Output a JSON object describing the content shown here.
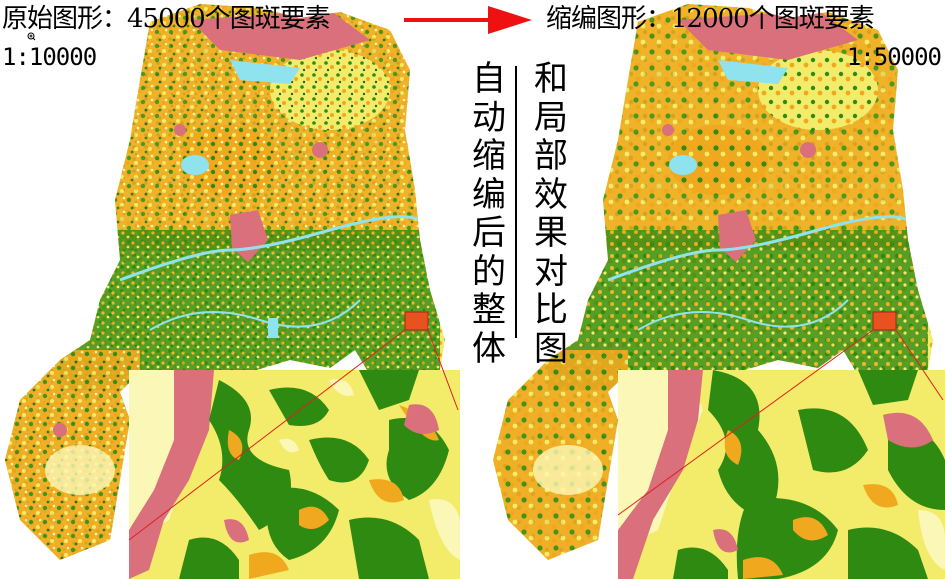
{
  "left": {
    "title": "原始图形：45000个图斑要素",
    "scale": "1:10000"
  },
  "right": {
    "title": "缩编图形：12000个图斑要素",
    "scale": "1:50000"
  },
  "caption": {
    "column_one": "自动缩编后的整体",
    "column_two": "和局部效果对比图"
  },
  "colors": {
    "arrow": "#ee1111",
    "forest_green": "#2f8a12",
    "dark_green": "#1f6a0c",
    "orange": "#f0a81e",
    "yellow": "#f3ec6a",
    "pale_yellow": "#fbf7b6",
    "pink": "#d9707c",
    "water": "#8ee3ee",
    "zoom_box": "#e8521e",
    "zoom_line": "#e02020"
  },
  "icons": [
    "zoom-cursor-icon",
    "right-arrow-icon"
  ]
}
